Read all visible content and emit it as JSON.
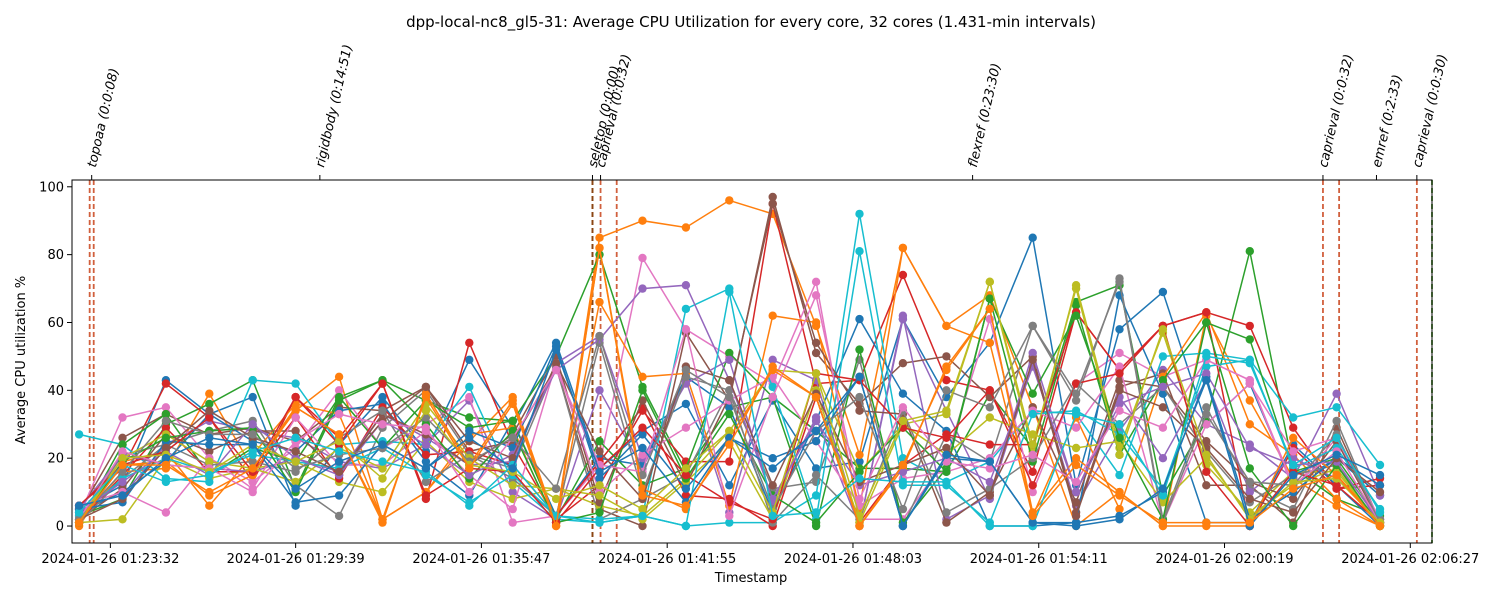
{
  "chart_data": {
    "type": "line",
    "title": "dpp-local-nc8_gl5-31: Average CPU Utilization for every core, 32 cores (1.431-min intervals)",
    "xlabel": "Timestamp",
    "ylabel": "Average CPU utilization %",
    "xlim": [
      "2024-01-26 01:22:16",
      "2024-01-26 02:07:10"
    ],
    "ylim": [
      -5,
      102
    ],
    "x_ticks": [
      "2024-01-26 01:23:32",
      "2024-01-26 01:29:39",
      "2024-01-26 01:35:47",
      "2024-01-26 01:41:55",
      "2024-01-26 01:48:03",
      "2024-01-26 01:54:11",
      "2024-01-26 02:00:19",
      "2024-01-26 02:06:27"
    ],
    "y_ticks": [
      0,
      20,
      40,
      60,
      80,
      100
    ],
    "grid": false,
    "x": [
      "01:22:30",
      "01:23:56",
      "01:25:22",
      "01:26:48",
      "01:28:14",
      "01:29:39",
      "01:31:05",
      "01:32:31",
      "01:33:57",
      "01:35:23",
      "01:36:49",
      "01:38:15",
      "01:39:41",
      "01:41:06",
      "01:42:32",
      "01:43:58",
      "01:45:24",
      "01:46:50",
      "01:48:16",
      "01:49:42",
      "01:51:08",
      "01:52:34",
      "01:53:59",
      "01:55:25",
      "01:56:51",
      "01:58:17",
      "01:59:43",
      "02:01:09",
      "02:02:35",
      "02:04:01",
      "02:05:27"
    ],
    "series": [
      {
        "color": "#1f77b4",
        "values": [
          5,
          12,
          43,
          33,
          38,
          6,
          24,
          38,
          22,
          49,
          29,
          54,
          17,
          28,
          36,
          12,
          37,
          17,
          19,
          61,
          38,
          54,
          85,
          12,
          58,
          69,
          30,
          42,
          12,
          20,
          9
        ]
      },
      {
        "color": "#ff7f0e",
        "values": [
          1,
          16,
          17,
          39,
          17,
          34,
          44,
          2,
          10,
          25,
          38,
          1,
          85,
          90,
          88,
          96,
          92,
          59,
          21,
          82,
          59,
          68,
          35,
          0,
          10,
          0,
          62,
          37,
          14,
          6,
          0
        ]
      },
      {
        "color": "#2ca02c",
        "values": [
          3,
          8,
          30,
          36,
          43,
          11,
          38,
          43,
          37,
          32,
          31,
          50,
          80,
          41,
          16,
          35,
          38,
          28,
          17,
          17,
          16,
          39,
          23,
          66,
          71,
          9,
          31,
          81,
          17,
          8,
          3
        ]
      },
      {
        "color": "#d62728",
        "values": [
          6,
          17,
          42,
          32,
          13,
          38,
          26,
          42,
          8,
          54,
          24,
          2,
          12,
          34,
          19,
          19,
          95,
          42,
          43,
          74,
          43,
          40,
          16,
          63,
          46,
          59,
          63,
          59,
          29,
          11,
          12
        ]
      },
      {
        "color": "#9467bd",
        "values": [
          6,
          9,
          24,
          31,
          28,
          26,
          19,
          17,
          24,
          37,
          10,
          2,
          40,
          17,
          43,
          4,
          49,
          43,
          0,
          61,
          34,
          8,
          48,
          6,
          28,
          46,
          30,
          24,
          14,
          39,
          9
        ]
      },
      {
        "color": "#8c564b",
        "values": [
          4,
          26,
          33,
          27,
          29,
          25,
          35,
          34,
          41,
          22,
          25,
          47,
          5,
          0,
          57,
          37,
          97,
          51,
          36,
          48,
          50,
          38,
          50,
          4,
          41,
          45,
          12,
          12,
          1,
          29,
          1
        ]
      },
      {
        "color": "#e377c2",
        "values": [
          3,
          32,
          35,
          20,
          13,
          23,
          40,
          23,
          30,
          38,
          1,
          3,
          18,
          79,
          58,
          50,
          42,
          72,
          2,
          2,
          20,
          61,
          10,
          42,
          51,
          44,
          49,
          43,
          11,
          26,
          1
        ]
      },
      {
        "color": "#7f7f7f",
        "values": [
          2,
          21,
          24,
          28,
          31,
          12,
          3,
          29,
          40,
          21,
          17,
          47,
          2,
          8,
          15,
          40,
          11,
          13,
          49,
          0,
          27,
          19,
          59,
          37,
          73,
          2,
          35,
          11,
          5,
          31,
          1
        ]
      },
      {
        "color": "#bcbd22",
        "values": [
          1,
          2,
          20,
          14,
          17,
          19,
          13,
          10,
          25,
          13,
          8,
          11,
          6,
          3,
          14,
          28,
          46,
          45,
          16,
          30,
          33,
          72,
          22,
          71,
          23,
          57,
          18,
          4,
          16,
          16,
          1
        ]
      },
      {
        "color": "#17becf",
        "values": [
          27,
          24,
          14,
          13,
          43,
          42,
          24,
          25,
          24,
          41,
          13,
          2,
          1,
          3,
          0,
          1,
          1,
          9,
          92,
          20,
          13,
          19,
          34,
          33,
          15,
          50,
          51,
          49,
          32,
          35,
          18
        ]
      },
      {
        "color": "#1f77b4",
        "values": [
          4,
          10,
          19,
          33,
          25,
          22,
          34,
          36,
          19,
          9,
          31,
          3,
          20,
          18,
          44,
          35,
          4,
          31,
          61,
          39,
          28,
          0,
          0,
          1,
          68,
          39,
          1,
          1,
          24,
          12,
          0
        ]
      },
      {
        "color": "#ff7f0e",
        "values": [
          0,
          19,
          22,
          6,
          21,
          36,
          33,
          2,
          10,
          27,
          29,
          0,
          66,
          44,
          45,
          6,
          62,
          60,
          5,
          82,
          59,
          54,
          3,
          32,
          5,
          44,
          63,
          30,
          21,
          8,
          0
        ]
      },
      {
        "color": "#2ca02c",
        "values": [
          1,
          24,
          33,
          15,
          23,
          19,
          38,
          23,
          37,
          29,
          31,
          2,
          25,
          12,
          17,
          51,
          38,
          0,
          52,
          1,
          17,
          67,
          19,
          65,
          21,
          43,
          60,
          55,
          16,
          20,
          2
        ]
      },
      {
        "color": "#d62728",
        "values": [
          1,
          15,
          29,
          16,
          16,
          32,
          14,
          35,
          21,
          22,
          18,
          3,
          19,
          35,
          9,
          8,
          0,
          38,
          1,
          18,
          27,
          24,
          24,
          63,
          46,
          59,
          63,
          0,
          23,
          11,
          14
        ]
      },
      {
        "color": "#9467bd",
        "values": [
          5,
          21,
          18,
          17,
          16,
          20,
          16,
          33,
          26,
          18,
          19,
          48,
          56,
          20,
          42,
          49,
          7,
          32,
          0,
          62,
          2,
          9,
          51,
          10,
          38,
          20,
          43,
          10,
          20,
          14,
          2
        ]
      },
      {
        "color": "#8c564b",
        "values": [
          2,
          11,
          27,
          22,
          28,
          28,
          15,
          33,
          27,
          18,
          27,
          50,
          7,
          37,
          12,
          38,
          95,
          54,
          34,
          33,
          1,
          10,
          35,
          7,
          43,
          41,
          25,
          13,
          8,
          25,
          1
        ]
      },
      {
        "color": "#e377c2",
        "values": [
          6,
          10,
          4,
          20,
          11,
          32,
          18,
          18,
          28,
          15,
          5,
          48,
          10,
          21,
          29,
          37,
          44,
          25,
          6,
          14,
          16,
          20,
          34,
          29,
          47,
          1,
          30,
          42,
          22,
          26,
          2
        ]
      },
      {
        "color": "#7f7f7f",
        "values": [
          1,
          14,
          24,
          18,
          19,
          16,
          26,
          34,
          13,
          21,
          14,
          3,
          54,
          10,
          44,
          40,
          1,
          15,
          2,
          34,
          4,
          11,
          20,
          42,
          30,
          41,
          22,
          7,
          15,
          18,
          2
        ]
      },
      {
        "color": "#bcbd22",
        "values": [
          2,
          20,
          27,
          19,
          17,
          13,
          23,
          17,
          36,
          20,
          12,
          11,
          9,
          2,
          13,
          25,
          2,
          40,
          1,
          30,
          21,
          32,
          27,
          23,
          25,
          7,
          20,
          3,
          12,
          17,
          0
        ]
      },
      {
        "color": "#17becf",
        "values": [
          3,
          14,
          20,
          16,
          21,
          19,
          17,
          23,
          15,
          7,
          15,
          3,
          2,
          3,
          64,
          70,
          41,
          2,
          81,
          12,
          12,
          1,
          33,
          34,
          27,
          11,
          47,
          49,
          17,
          23,
          5
        ]
      },
      {
        "color": "#1f77b4",
        "values": [
          5,
          7,
          25,
          24,
          24,
          7,
          9,
          24,
          17,
          28,
          23,
          53,
          14,
          27,
          11,
          26,
          20,
          25,
          44,
          0,
          20,
          19,
          1,
          1,
          3,
          10,
          44,
          2,
          10,
          20,
          12
        ]
      },
      {
        "color": "#ff7f0e",
        "values": [
          2,
          18,
          19,
          9,
          15,
          35,
          27,
          1,
          39,
          18,
          37,
          1,
          82,
          11,
          5,
          26,
          46,
          38,
          0,
          17,
          47,
          64,
          4,
          20,
          10,
          0,
          0,
          0,
          26,
          15,
          1
        ]
      },
      {
        "color": "#2ca02c",
        "values": [
          1,
          19,
          26,
          28,
          29,
          10,
          37,
          43,
          30,
          14,
          28,
          1,
          4,
          40,
          14,
          33,
          9,
          1,
          16,
          29,
          16,
          67,
          39,
          62,
          26,
          2,
          60,
          17,
          0,
          18,
          0
        ]
      },
      {
        "color": "#d62728",
        "values": [
          6,
          18,
          22,
          32,
          16,
          38,
          24,
          42,
          9,
          17,
          16,
          1,
          17,
          29,
          15,
          7,
          2,
          45,
          43,
          29,
          26,
          40,
          12,
          42,
          45,
          59,
          16,
          0,
          16,
          12,
          1
        ]
      },
      {
        "color": "#9467bd",
        "values": [
          4,
          13,
          22,
          15,
          30,
          20,
          15,
          31,
          24,
          15,
          21,
          46,
          55,
          70,
          71,
          43,
          8,
          31,
          12,
          16,
          20,
          13,
          47,
          10,
          36,
          41,
          45,
          23,
          18,
          19,
          1
        ]
      },
      {
        "color": "#8c564b",
        "values": [
          2,
          8,
          23,
          34,
          26,
          22,
          16,
          31,
          41,
          25,
          20,
          48,
          22,
          8,
          47,
          43,
          12,
          39,
          13,
          18,
          23,
          9,
          49,
          3,
          40,
          35,
          23,
          8,
          4,
          20,
          10
        ]
      },
      {
        "color": "#e377c2",
        "values": [
          2,
          22,
          18,
          17,
          10,
          25,
          33,
          30,
          29,
          10,
          26,
          46,
          18,
          16,
          58,
          3,
          38,
          68,
          8,
          35,
          19,
          17,
          21,
          13,
          34,
          29,
          49,
          43,
          12,
          22,
          1
        ]
      },
      {
        "color": "#7f7f7f",
        "values": [
          2,
          16,
          31,
          27,
          27,
          17,
          21,
          23,
          32,
          19,
          26,
          11,
          56,
          15,
          46,
          38,
          5,
          28,
          38,
          5,
          40,
          35,
          59,
          39,
          72,
          1,
          33,
          13,
          12,
          27,
          1
        ]
      },
      {
        "color": "#bcbd22",
        "values": [
          1,
          20,
          21,
          16,
          24,
          19,
          25,
          14,
          34,
          18,
          16,
          8,
          12,
          5,
          17,
          28,
          4,
          45,
          3,
          31,
          34,
          72,
          24,
          70,
          21,
          58,
          21,
          2,
          13,
          14,
          1
        ]
      },
      {
        "color": "#17becf",
        "values": [
          4,
          18,
          13,
          15,
          22,
          26,
          22,
          19,
          16,
          6,
          18,
          3,
          1,
          3,
          0,
          69,
          3,
          4,
          14,
          13,
          13,
          0,
          0,
          33,
          30,
          9,
          50,
          48,
          18,
          26,
          4
        ]
      },
      {
        "color": "#1f77b4",
        "values": [
          6,
          9,
          20,
          26,
          24,
          11,
          19,
          24,
          17,
          26,
          17,
          52,
          16,
          23,
          7,
          26,
          17,
          28,
          44,
          0,
          21,
          19,
          1,
          0,
          2,
          11,
          43,
          0,
          15,
          21,
          15
        ]
      },
      {
        "color": "#ff7f0e",
        "values": [
          1,
          18,
          18,
          10,
          17,
          35,
          27,
          2,
          38,
          17,
          36,
          0,
          82,
          9,
          6,
          24,
          47,
          38,
          0,
          18,
          46,
          64,
          3,
          18,
          9,
          1,
          1,
          1,
          11,
          15,
          0
        ]
      }
    ],
    "events": [
      {
        "label": "topoaa (0:0:08)",
        "line_times": [
          "01:22:51",
          "01:22:59"
        ],
        "line_color": "#d1603d",
        "label_time": "01:22:55"
      },
      {
        "label": "rigidbody (0:14:51)",
        "line_times": [],
        "line_color": "#d1603d",
        "label_time": "01:30:27"
      },
      {
        "label": "seletop (0:0:00)",
        "line_times": [
          "01:39:27",
          "01:39:27"
        ],
        "line_color": "#8b4513",
        "label_time": "01:39:27"
      },
      {
        "label": "caprieval (0:0:32)",
        "line_times": [
          "01:39:43",
          "01:40:15"
        ],
        "line_color": "#d1603d",
        "label_time": "01:39:43"
      },
      {
        "label": "flexref (0:23:30)",
        "line_times": [],
        "line_color": "#d1603d",
        "label_time": "01:52:00"
      },
      {
        "label": "caprieval (0:0:32)",
        "line_times": [
          "02:03:34",
          "02:04:06"
        ],
        "line_color": "#d1603d",
        "label_time": "02:03:34"
      },
      {
        "label": "emref (0:2:33)",
        "line_times": [],
        "line_color": "#d1603d",
        "label_time": "02:05:20"
      },
      {
        "label": "caprieval (0:0:30)",
        "line_times": [
          "02:06:40",
          "02:07:10"
        ],
        "line_color": "#d1603d",
        "label_time": "02:06:40"
      }
    ],
    "end_marker": {
      "time": "02:07:10",
      "color": "#5cb85c"
    }
  }
}
